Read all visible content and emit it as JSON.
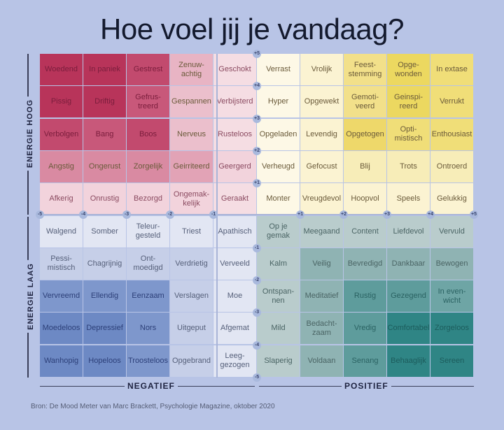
{
  "title": "Hoe voel jij je vandaag?",
  "axes": {
    "y_high": "ENERGIE HOOG",
    "y_low": "ENERGIE LAAG",
    "x_neg": "NEGATIEF",
    "x_pos": "POSITIEF",
    "x_ticks": [
      "-5",
      "-4",
      "-3",
      "-2",
      "-1",
      "+1",
      "+2",
      "+3",
      "+4",
      "+5"
    ],
    "y_ticks": [
      "+5",
      "+4",
      "+3",
      "+2",
      "+1",
      "-1",
      "-2",
      "-3",
      "-4",
      "-5"
    ]
  },
  "grid": {
    "rows": [
      [
        "Woedend",
        "In paniek",
        "Gestrest",
        "Zenuw-\nachtig",
        "Geschokt",
        "Verrast",
        "Vrolijk",
        "Feest-\nstemming",
        "Opge-\nwonden",
        "In extase"
      ],
      [
        "Pissig",
        "Driftig",
        "Gefrus-\ntreerd",
        "Gespannen",
        "Verbijsterd",
        "Hyper",
        "Opgewekt",
        "Gemoti-\nveerd",
        "Geinspi-\nreerd",
        "Verrukt"
      ],
      [
        "Verbolgen",
        "Bang",
        "Boos",
        "Nerveus",
        "Rusteloos",
        "Opgeladen",
        "Levendig",
        "Opgetogen",
        "Opti-\nmistisch",
        "Enthousiast"
      ],
      [
        "Angstig",
        "Ongerust",
        "Zorgelijk",
        "Geirriteerd",
        "Geergerd",
        "Verheugd",
        "Gefocust",
        "Blij",
        "Trots",
        "Ontroerd"
      ],
      [
        "Afkerig",
        "Onrustig",
        "Bezorgd",
        "Ongemak-\nkelijk",
        "Geraakt",
        "Monter",
        "Vreugdevol",
        "Hoopvol",
        "Speels",
        "Gelukkig"
      ],
      [
        "Walgend",
        "Somber",
        "Teleur-\ngesteld",
        "Triest",
        "Apathisch",
        "Op je\ngemak",
        "Meegaand",
        "Content",
        "Liefdevol",
        "Vervuld"
      ],
      [
        "Pessi-\nmistisch",
        "Chagrijnig",
        "Ont-\nmoedigd",
        "Verdrietig",
        "Verveeld",
        "Kalm",
        "Veilig",
        "Bevredigd",
        "Dankbaar",
        "Bewogen"
      ],
      [
        "Vervreemd",
        "Ellendig",
        "Eenzaam",
        "Verslagen",
        "Moe",
        "Ontspan-\nnen",
        "Meditatief",
        "Rustig",
        "Gezegend",
        "In even-\nwicht"
      ],
      [
        "Moedeloos",
        "Depressief",
        "Nors",
        "Uitgeput",
        "Afgemat",
        "Mild",
        "Bedacht-\nzaam",
        "Vredig",
        "Comfortabel",
        "Zorgeloos"
      ],
      [
        "Wanhopig",
        "Hopeloos",
        "Troosteloos",
        "Opgebrand",
        "Leeg-\ngezogen",
        "Slaperig",
        "Voldaan",
        "Senang",
        "Behaaglijk",
        "Sereen"
      ]
    ],
    "colors": [
      [
        "#b8345a",
        "#b8345a",
        "#c24a6e",
        "#e8b4c4",
        "#f5dde3",
        "#fdf8e6",
        "#fbf3d2",
        "#f2e08a",
        "#ecd860",
        "#f0de78"
      ],
      [
        "#b8345a",
        "#b8345a",
        "#c8587a",
        "#ebbfcc",
        "#f5dde3",
        "#fdf8e6",
        "#fbf3d2",
        "#f2e08a",
        "#ecd860",
        "#f0de78"
      ],
      [
        "#c24a6e",
        "#c8587a",
        "#c24a6e",
        "#ebbfcc",
        "#f5dde3",
        "#fdf8e6",
        "#fbf3d2",
        "#eed86a",
        "#f0de78",
        "#f0de78"
      ],
      [
        "#d98aa2",
        "#d98aa2",
        "#d98aa2",
        "#e2a3b6",
        "#f2d3dc",
        "#fdf8e6",
        "#fbf3d2",
        "#f7edb8",
        "#f7edb8",
        "#f7edb8"
      ],
      [
        "#f2d3dc",
        "#f2d3dc",
        "#f2d3dc",
        "#f2d3dc",
        "#f5dde3",
        "#fdf8e6",
        "#fbf3d2",
        "#fbf3d2",
        "#fbf3d2",
        "#fbf3d2"
      ],
      [
        "#e2e6f3",
        "#e2e6f3",
        "#e2e6f3",
        "#e2e6f3",
        "#e2e6f3",
        "#b9cccc",
        "#b9cccc",
        "#b9cccc",
        "#b9cccc",
        "#b9cccc"
      ],
      [
        "#c6cfe8",
        "#c6cfe8",
        "#c6cfe8",
        "#c6cfe8",
        "#e2e6f3",
        "#b9cccc",
        "#8fb3b3",
        "#8fb3b3",
        "#8fb3b3",
        "#8fb3b3"
      ],
      [
        "#7e97cc",
        "#7e97cc",
        "#7e97cc",
        "#c6cfe8",
        "#e2e6f3",
        "#b9cccc",
        "#8fb3b3",
        "#5e9c9c",
        "#5e9c9c",
        "#6ea5a5"
      ],
      [
        "#6d89c4",
        "#6d89c4",
        "#7e97cc",
        "#c6cfe8",
        "#e2e6f3",
        "#b9cccc",
        "#8fb3b3",
        "#5e9c9c",
        "#2f8585",
        "#2f8585"
      ],
      [
        "#6d89c4",
        "#6d89c4",
        "#7e97cc",
        "#c6cfe8",
        "#e2e6f3",
        "#b9cccc",
        "#8fb3b3",
        "#5e9c9c",
        "#2f8585",
        "#2f8585"
      ]
    ]
  },
  "source": "Bron: De Mood Meter van Marc Brackett, Psychologie Magazine, oktober 2020"
}
